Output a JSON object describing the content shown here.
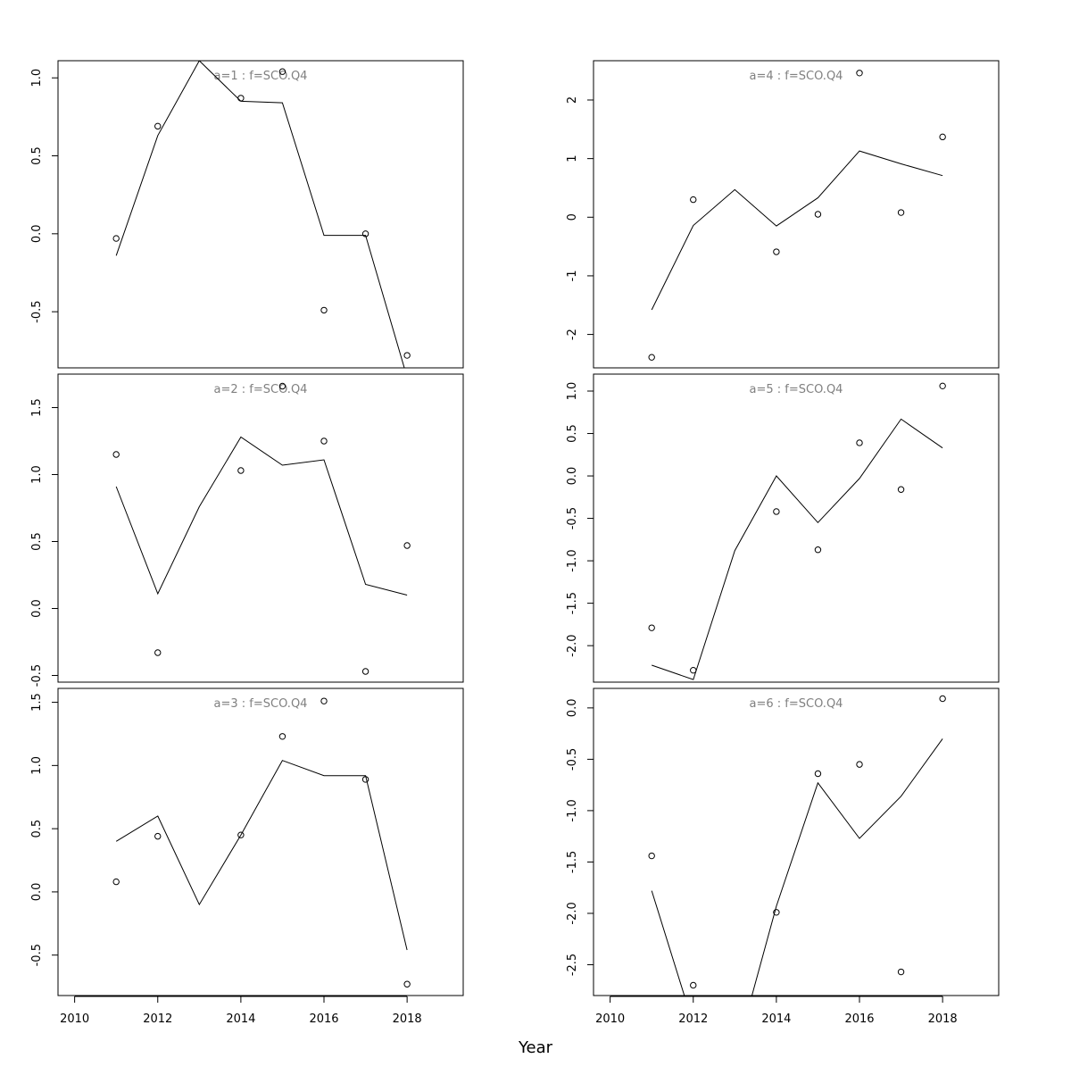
{
  "chart_data": {
    "type": "line",
    "xlabel": "Year",
    "xlim": [
      2009.6,
      2019.35
    ],
    "x_ticks": [
      2010,
      2012,
      2014,
      2016,
      2018
    ],
    "colors": {
      "line": "#000000",
      "points": "#000000",
      "title": "#808080",
      "box": "#000000"
    },
    "panels": [
      {
        "title": "a=1  :  f=SCO.Q4",
        "ylim": [
          -0.86,
          1.11
        ],
        "y_ticks": [
          "1.0",
          "0.5",
          "0.0",
          "-0.5"
        ],
        "y_tick_values": [
          1.0,
          0.5,
          0.0,
          -0.5
        ],
        "observed": {
          "x": [
            2011,
            2012,
            2014,
            2015,
            2016,
            2017,
            2018
          ],
          "y": [
            -0.03,
            0.69,
            0.87,
            1.04,
            -0.49,
            0.0,
            -0.78
          ]
        },
        "fitted": {
          "x": [
            2011,
            2012,
            2013,
            2014,
            2015,
            2016,
            2017,
            2018
          ],
          "y": [
            -0.14,
            0.63,
            1.11,
            0.85,
            0.84,
            -0.01,
            -0.01,
            -0.92
          ]
        }
      },
      {
        "title": "a=2  :  f=SCO.Q4",
        "ylim": [
          -0.55,
          1.75
        ],
        "y_ticks": [
          "1.5",
          "1.0",
          "0.5",
          "0.0",
          "-0.5"
        ],
        "y_tick_values": [
          1.5,
          1.0,
          0.5,
          0.0,
          -0.5
        ],
        "observed": {
          "x": [
            2011,
            2012,
            2014,
            2015,
            2016,
            2017,
            2018
          ],
          "y": [
            1.15,
            -0.33,
            1.03,
            1.66,
            1.25,
            -0.47,
            0.47
          ]
        },
        "fitted": {
          "x": [
            2011,
            2012,
            2013,
            2014,
            2015,
            2016,
            2017,
            2018
          ],
          "y": [
            0.91,
            0.11,
            0.76,
            1.28,
            1.07,
            1.11,
            0.18,
            0.1
          ]
        }
      },
      {
        "title": "a=3  :  f=SCO.Q4",
        "ylim": [
          -0.82,
          1.61
        ],
        "y_ticks": [
          "1.5",
          "1.0",
          "0.5",
          "0.0",
          "-0.5"
        ],
        "y_tick_values": [
          1.5,
          1.0,
          0.5,
          0.0,
          -0.5
        ],
        "observed": {
          "x": [
            2011,
            2012,
            2014,
            2015,
            2016,
            2017,
            2018
          ],
          "y": [
            0.08,
            0.44,
            0.45,
            1.23,
            1.51,
            0.89,
            -0.73
          ]
        },
        "fitted": {
          "x": [
            2011,
            2012,
            2013,
            2014,
            2015,
            2016,
            2017,
            2018
          ],
          "y": [
            0.4,
            0.6,
            -0.1,
            0.45,
            1.04,
            0.92,
            0.92,
            -0.46
          ]
        }
      },
      {
        "title": "a=4  :  f=SCO.Q4",
        "ylim": [
          -2.57,
          2.67
        ],
        "y_ticks": [
          "2",
          "1",
          "0",
          "-1",
          "-2"
        ],
        "y_tick_values": [
          2,
          1,
          0,
          -1,
          -2
        ],
        "observed": {
          "x": [
            2011,
            2012,
            2014,
            2015,
            2016,
            2017,
            2018
          ],
          "y": [
            -2.39,
            0.3,
            -0.59,
            0.05,
            2.46,
            0.08,
            1.37
          ]
        },
        "fitted": {
          "x": [
            2011,
            2012,
            2013,
            2014,
            2015,
            2016,
            2017,
            2018
          ],
          "y": [
            -1.58,
            -0.14,
            0.47,
            -0.15,
            0.33,
            1.13,
            0.91,
            0.71
          ]
        }
      },
      {
        "title": "a=5  :  f=SCO.Q4",
        "ylim": [
          -2.43,
          1.2
        ],
        "y_ticks": [
          "1.0",
          "0.5",
          "0.0",
          "-0.5",
          "-1.0",
          "-1.5",
          "-2.0"
        ],
        "y_tick_values": [
          1.0,
          0.5,
          0.0,
          -0.5,
          -1.0,
          -1.5,
          -2.0
        ],
        "observed": {
          "x": [
            2011,
            2012,
            2014,
            2015,
            2016,
            2017,
            2018
          ],
          "y": [
            -1.79,
            -2.29,
            -0.42,
            -0.87,
            0.39,
            -0.16,
            1.06
          ]
        },
        "fitted": {
          "x": [
            2011,
            2012,
            2013,
            2014,
            2015,
            2016,
            2017,
            2018
          ],
          "y": [
            -2.23,
            -2.4,
            -0.88,
            0.0,
            -0.55,
            -0.03,
            0.67,
            0.33
          ]
        }
      },
      {
        "title": "a=6  :  f=SCO.Q4",
        "ylim": [
          -2.8,
          0.19
        ],
        "y_ticks": [
          "0.0",
          "-0.5",
          "-1.0",
          "-1.5",
          "-2.0",
          "-2.5"
        ],
        "y_tick_values": [
          0.0,
          -0.5,
          -1.0,
          -1.5,
          -2.0,
          -2.5
        ],
        "observed": {
          "x": [
            2011,
            2012,
            2014,
            2015,
            2016,
            2017,
            2018
          ],
          "y": [
            -1.44,
            -2.7,
            -1.99,
            -0.64,
            -0.55,
            -2.57,
            0.09
          ]
        },
        "fitted": {
          "x": [
            2011,
            2012,
            2013,
            2014,
            2015,
            2016,
            2017,
            2018
          ],
          "y": [
            -1.78,
            -3.08,
            -3.41,
            -1.93,
            -0.73,
            -1.27,
            -0.86,
            -0.3
          ]
        }
      }
    ]
  }
}
